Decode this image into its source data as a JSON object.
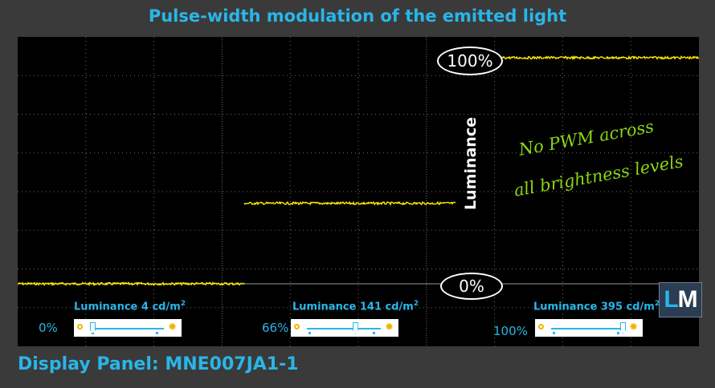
{
  "title": "Pulse-width modulation of the emitted light",
  "footer": "Display Panel: MNE007JA1-1",
  "logo": {
    "l": "L",
    "m": "M"
  },
  "colors": {
    "accent": "#29b6e8",
    "trace": "#ffee00",
    "note": "#8cd613"
  },
  "labels": {
    "top": "100%",
    "bottom": "0%",
    "axis": "Luminance",
    "note_line1": "No PWM across",
    "note_line2": "all brightness levels"
  },
  "readouts": [
    {
      "luminance_label": "Luminance 4 cd/m",
      "sup": "2",
      "brightness": "0%",
      "slider_pos": 0.0
    },
    {
      "luminance_label": "Luminance 141 cd/m",
      "sup": "2",
      "brightness": "66%",
      "slider_pos": 0.66
    },
    {
      "luminance_label": "Luminance 395 cd/m",
      "sup": "2",
      "brightness": "100%",
      "slider_pos": 1.0
    }
  ],
  "chart_data": {
    "type": "line",
    "title": "Pulse-width modulation of the emitted light",
    "ylabel": "Luminance",
    "ylim": [
      0,
      100
    ],
    "grid": true,
    "series": [
      {
        "segment": 1,
        "level_percent": 0
      },
      {
        "segment": 2,
        "level_percent": 35.6
      },
      {
        "segment": 3,
        "level_percent": 100
      }
    ]
  }
}
